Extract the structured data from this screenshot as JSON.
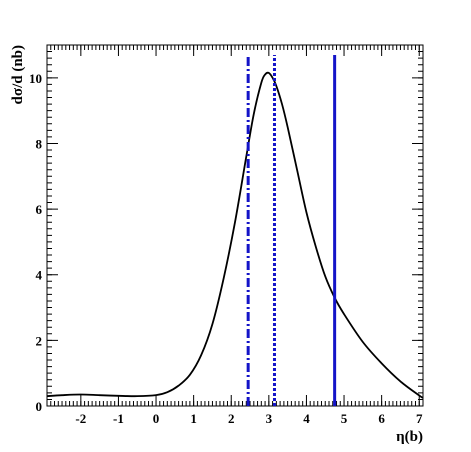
{
  "chart_data": {
    "type": "line",
    "title": "",
    "xlabel": "η(b)",
    "ylabel": "dσ/d (nb)",
    "xlim": [
      -2.9,
      7.1
    ],
    "ylim": [
      0,
      11.0
    ],
    "grid": false,
    "x_ticks": [
      -2,
      -1,
      0,
      1,
      2,
      3,
      4,
      5,
      6,
      7
    ],
    "x_tick_labels": [
      "-2",
      "-1",
      "0",
      "1",
      "2",
      "3",
      "4",
      "5",
      "6",
      "7"
    ],
    "y_ticks": [
      0,
      2,
      4,
      6,
      8,
      10
    ],
    "y_tick_labels": [
      "0",
      "2",
      "4",
      "6",
      "8",
      "10"
    ],
    "series": [
      {
        "color": "#000000",
        "x": [
          -2.9,
          -2.5,
          -2.0,
          -1.5,
          -1.0,
          -0.5,
          0.0,
          0.3,
          0.6,
          0.9,
          1.2,
          1.5,
          1.8,
          2.1,
          2.4,
          2.6,
          2.8,
          2.9,
          3.0,
          3.1,
          3.2,
          3.35,
          3.5,
          3.75,
          4.0,
          4.25,
          4.5,
          4.75,
          5.0,
          5.5,
          6.0,
          6.5,
          7.0,
          7.1
        ],
        "y": [
          0.3,
          0.33,
          0.35,
          0.33,
          0.31,
          0.3,
          0.33,
          0.42,
          0.62,
          0.95,
          1.55,
          2.5,
          3.9,
          5.6,
          7.6,
          8.9,
          9.85,
          10.1,
          10.15,
          10.0,
          9.75,
          9.2,
          8.5,
          7.2,
          5.9,
          4.85,
          3.95,
          3.3,
          2.8,
          1.95,
          1.3,
          0.75,
          0.32,
          0.25
        ]
      }
    ],
    "vertical_lines": [
      {
        "x": 2.45,
        "style": "dashdot",
        "color": "#1414c8"
      },
      {
        "x": 3.15,
        "style": "dotted",
        "color": "#1414c8"
      },
      {
        "x": 4.75,
        "style": "solid",
        "color": "#1414c8"
      }
    ]
  }
}
